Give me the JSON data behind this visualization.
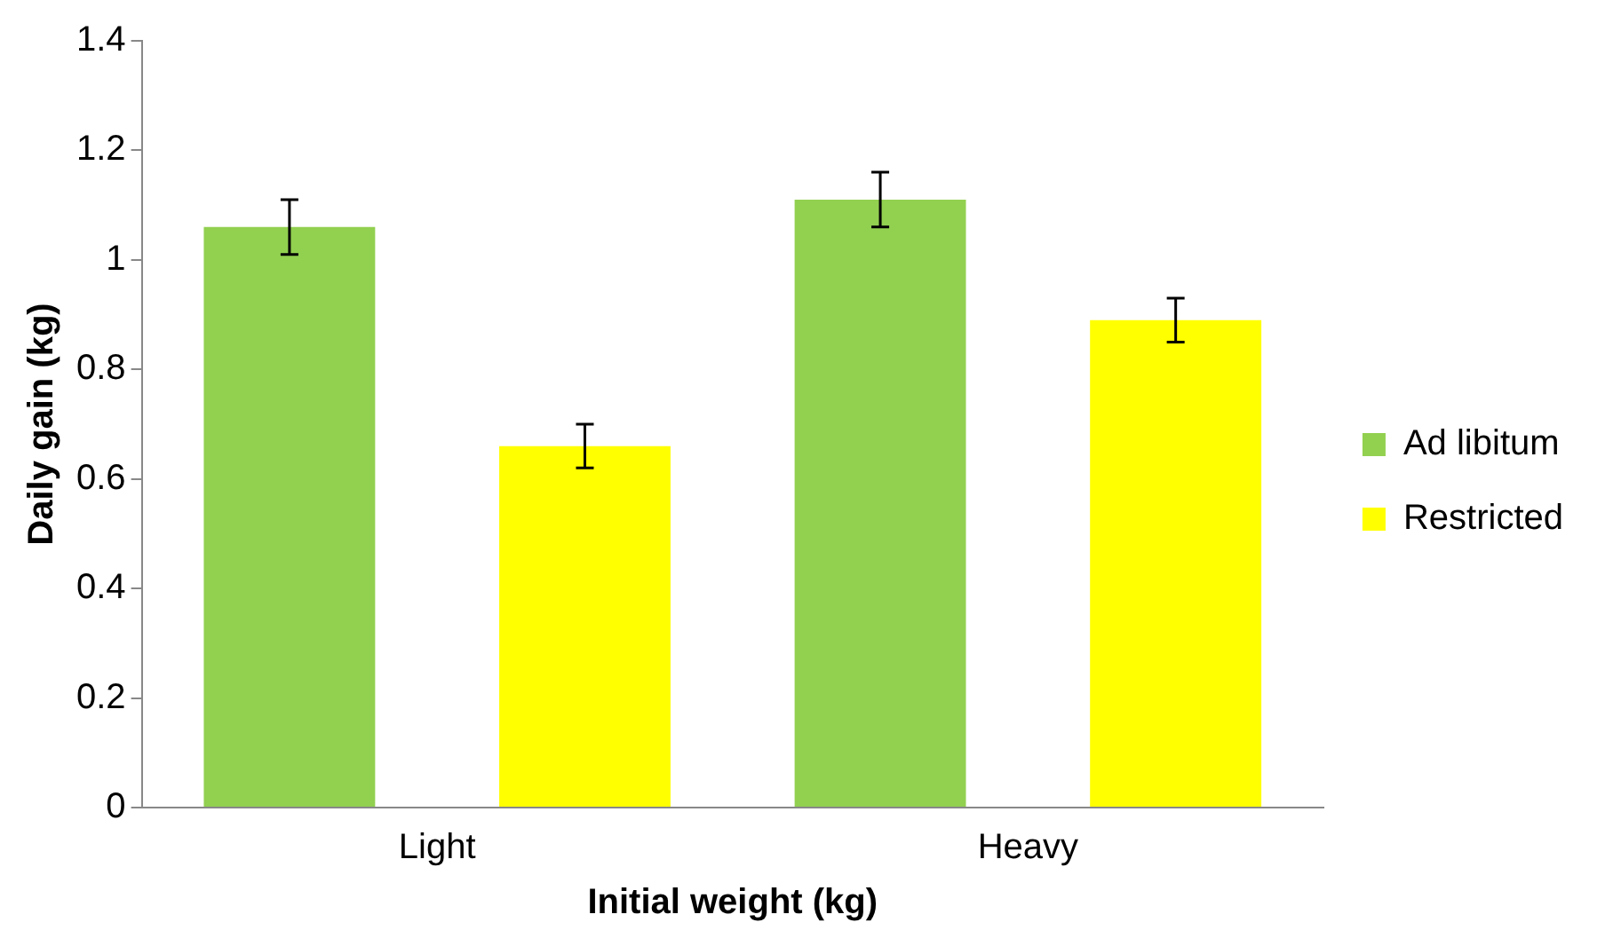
{
  "chart_data": {
    "type": "bar",
    "xlabel": "Initial weight (kg)",
    "ylabel": "Daily gain (kg)",
    "categories": [
      "Light",
      "Heavy"
    ],
    "series": [
      {
        "name": "Ad libitum",
        "color": "#92d050",
        "values": [
          1.06,
          1.11
        ],
        "errors": [
          0.05,
          0.05
        ]
      },
      {
        "name": "Restricted",
        "color": "#ffff00",
        "values": [
          0.66,
          0.89
        ],
        "errors": [
          0.04,
          0.04
        ]
      }
    ],
    "ylim": [
      0,
      1.4
    ],
    "yticks": [
      0,
      0.2,
      0.4,
      0.6,
      0.8,
      1,
      1.2,
      1.4
    ],
    "grid": false,
    "legend": "right"
  }
}
